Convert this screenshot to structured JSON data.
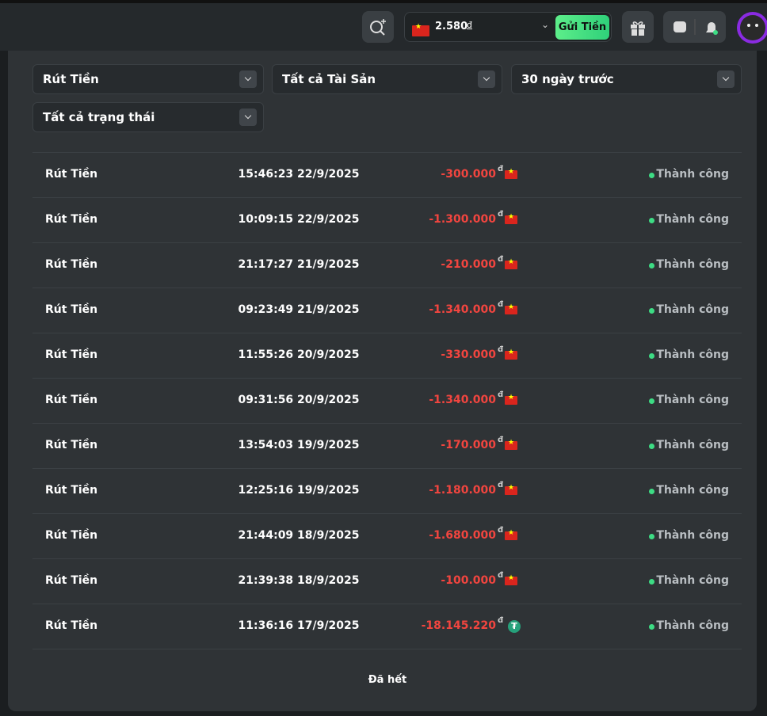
{
  "header": {
    "balance": "2.580",
    "currency": "đ",
    "deposit_button": "Gửi Tiền"
  },
  "filters": [
    "Rút Tiền",
    "Tất cả Tài Sản",
    "30 ngày trước",
    "Tất cả trạng thái"
  ],
  "table": {
    "rows": [
      {
        "type": "Rút Tiền",
        "time": "15:46:23 22/9/2025",
        "amount": "-300.000",
        "currency": "đ",
        "icon": "vn-flag",
        "status": "Thành công"
      },
      {
        "type": "Rút Tiền",
        "time": "10:09:15 22/9/2025",
        "amount": "-1.300.000",
        "currency": "đ",
        "icon": "vn-flag",
        "status": "Thành công"
      },
      {
        "type": "Rút Tiền",
        "time": "21:17:27 21/9/2025",
        "amount": "-210.000",
        "currency": "đ",
        "icon": "vn-flag",
        "status": "Thành công"
      },
      {
        "type": "Rút Tiền",
        "time": "09:23:49 21/9/2025",
        "amount": "-1.340.000",
        "currency": "đ",
        "icon": "vn-flag",
        "status": "Thành công"
      },
      {
        "type": "Rút Tiền",
        "time": "11:55:26 20/9/2025",
        "amount": "-330.000",
        "currency": "đ",
        "icon": "vn-flag",
        "status": "Thành công"
      },
      {
        "type": "Rút Tiền",
        "time": "09:31:56 20/9/2025",
        "amount": "-1.340.000",
        "currency": "đ",
        "icon": "vn-flag",
        "status": "Thành công"
      },
      {
        "type": "Rút Tiền",
        "time": "13:54:03 19/9/2025",
        "amount": "-170.000",
        "currency": "đ",
        "icon": "vn-flag",
        "status": "Thành công"
      },
      {
        "type": "Rút Tiền",
        "time": "12:25:16 19/9/2025",
        "amount": "-1.180.000",
        "currency": "đ",
        "icon": "vn-flag",
        "status": "Thành công"
      },
      {
        "type": "Rút Tiền",
        "time": "21:44:09 18/9/2025",
        "amount": "-1.680.000",
        "currency": "đ",
        "icon": "vn-flag",
        "status": "Thành công"
      },
      {
        "type": "Rút Tiền",
        "time": "21:39:38 18/9/2025",
        "amount": "-100.000",
        "currency": "đ",
        "icon": "vn-flag",
        "status": "Thành công"
      },
      {
        "type": "Rút Tiền",
        "time": "11:36:16 17/9/2025",
        "amount": "-18.145.220",
        "currency": "đ",
        "icon": "usdt",
        "status": "Thành công"
      }
    ]
  },
  "footer": "Đã hết"
}
